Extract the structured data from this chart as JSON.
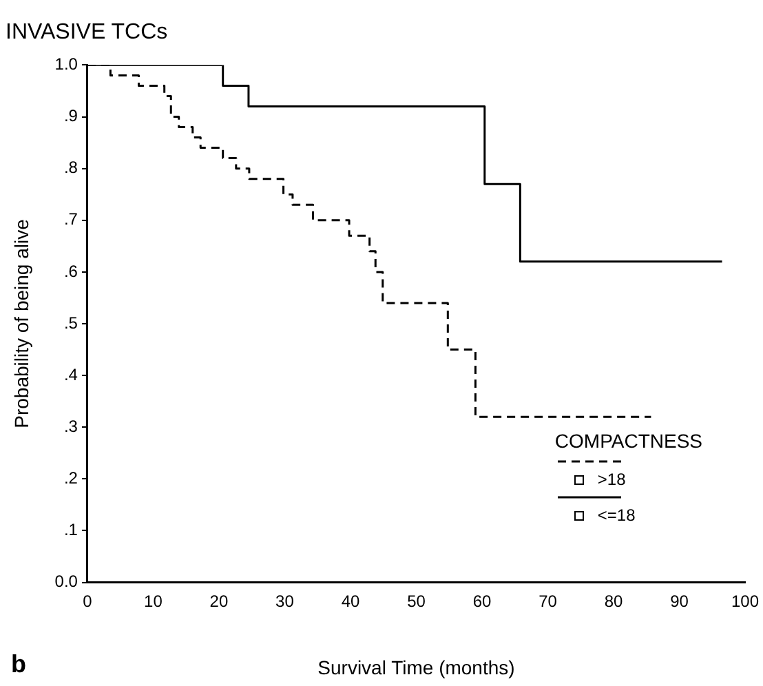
{
  "chart_data": {
    "type": "step",
    "title": "INVASIVE TCCs",
    "xlabel": "Survival Time (months)",
    "ylabel": "Probability of being alive",
    "legend_title": "COMPACTNESS",
    "annotations": [
      "b"
    ],
    "xlim": [
      0,
      100
    ],
    "xticks": [
      0,
      10,
      20,
      30,
      40,
      50,
      60,
      70,
      80,
      90,
      100
    ],
    "ylim": [
      0,
      1
    ],
    "yticks": [
      {
        "value": 0,
        "label": "0.0"
      },
      {
        "value": 0.1,
        "label": ".1"
      },
      {
        "value": 0.2,
        "label": ".2"
      },
      {
        "value": 0.3,
        "label": ".3"
      },
      {
        "value": 0.4,
        "label": ".4"
      },
      {
        "value": 0.5,
        "label": ".5"
      },
      {
        "value": 0.6,
        "label": ".6"
      },
      {
        "value": 0.7,
        "label": ".7"
      },
      {
        "value": 0.8,
        "label": ".8"
      },
      {
        "value": 0.9,
        "label": ".9"
      },
      {
        "value": 1,
        "label": "1.0"
      }
    ],
    "grid": false,
    "legend": "bottom right",
    "series": [
      {
        "name": ">18",
        "color": "#000000",
        "line_style": "dashed",
        "x": [
          0,
          3.5,
          7.8,
          11.7,
          12.7,
          13.9,
          16,
          17.2,
          20.6,
          22.6,
          24.6,
          29.8,
          31.2,
          34.3,
          39.8,
          42.9,
          43.8,
          44.9,
          54.8,
          59,
          85.7
        ],
        "values": [
          1,
          0.98,
          0.96,
          0.94,
          0.9,
          0.88,
          0.86,
          0.84,
          0.82,
          0.8,
          0.78,
          0.75,
          0.73,
          0.7,
          0.67,
          0.64,
          0.6,
          0.54,
          0.45,
          0.32,
          0.32
        ]
      },
      {
        "name": "<=18",
        "color": "#000000",
        "line_style": "solid",
        "x": [
          0,
          20.6,
          24.5,
          60.4,
          65.8,
          96.5
        ],
        "values": [
          1,
          0.96,
          0.92,
          0.77,
          0.62,
          0.62
        ]
      }
    ]
  }
}
